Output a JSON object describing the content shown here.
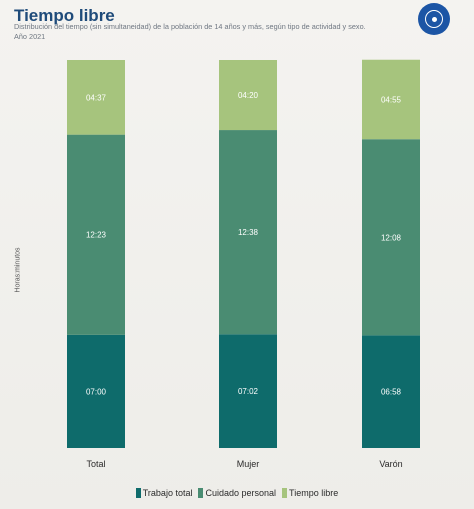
{
  "header": {
    "title": "Tiempo libre",
    "subtitle_line1": "Distribución del tiempo (sin simultaneidad) de la población de 14 años y más, según tipo de actividad y sexo.",
    "subtitle_line2": "Año 2021"
  },
  "logo": {
    "icon": "circular-seal-icon",
    "color": "#1c55a5"
  },
  "chart_data": {
    "type": "bar",
    "stacked": true,
    "categories": [
      "Total",
      "Mujer",
      "Varón"
    ],
    "series": [
      {
        "name": "Trabajo total",
        "color": "#0e6b6b",
        "values": [
          7.0,
          7.0333,
          6.9667
        ],
        "labels": [
          "07:00",
          "07:02",
          "06:58"
        ]
      },
      {
        "name": "Cuidado personal",
        "color": "#4a8c72",
        "values": [
          12.3833,
          12.6333,
          12.1333
        ],
        "labels": [
          "12:23",
          "12:38",
          "12:08"
        ]
      },
      {
        "name": "Tiempo libre",
        "color": "#a6c47d",
        "values": [
          4.6167,
          4.3333,
          4.9167
        ],
        "labels": [
          "04:37",
          "04:20",
          "04:55"
        ]
      }
    ],
    "ylabel": "Horas:minutos",
    "ylim": [
      0,
      24
    ],
    "grid": false,
    "legend_position": "bottom"
  }
}
